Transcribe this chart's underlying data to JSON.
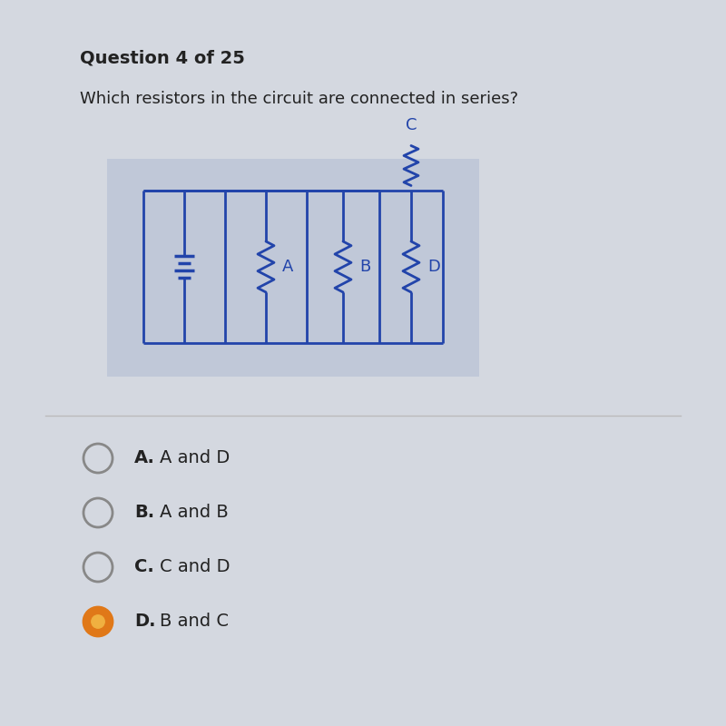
{
  "bg_color": "#d4d8e0",
  "circuit_bg": "#c0c8d8",
  "circuit_color": "#2244aa",
  "question_text": "Question 4 of 25",
  "body_text": "Which resistors in the circuit are connected in series?",
  "options": [
    {
      "letter": "A",
      "text": "A and D",
      "selected": false
    },
    {
      "letter": "B",
      "text": "A and B",
      "selected": false
    },
    {
      "letter": "C",
      "text": "C and D",
      "selected": false
    },
    {
      "letter": "D",
      "text": "B and C",
      "selected": true
    }
  ],
  "option_circle_color": "#888888",
  "selected_fill": "#e07818",
  "selected_inner": "#f0b040",
  "text_color": "#222222",
  "separator_color": "#bbbbbb",
  "circuit_lw": 2.0,
  "resistor_lw": 2.0
}
